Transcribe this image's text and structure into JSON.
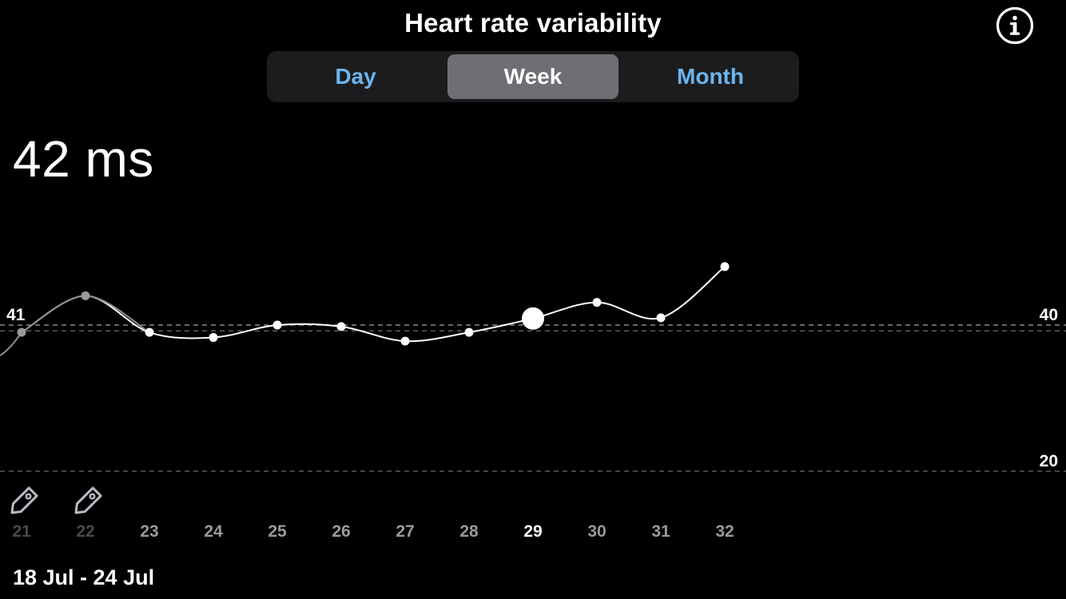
{
  "header": {
    "title": "Heart rate variability"
  },
  "segments": [
    {
      "label": "Day",
      "selected": false
    },
    {
      "label": "Week",
      "selected": true
    },
    {
      "label": "Month",
      "selected": false
    }
  ],
  "summary": {
    "value_text": "42 ms"
  },
  "date_range": "18 Jul - 24 Jul",
  "colors": {
    "background": "#000000",
    "accent": "#6cb4ef",
    "line": "#ffffff",
    "faded": "#8e8e93",
    "segment_selected": "#6e6f74"
  },
  "chart_data": {
    "type": "line",
    "x": [
      21,
      22,
      23,
      24,
      25,
      26,
      27,
      28,
      29,
      30,
      31,
      32
    ],
    "values": [
      39,
      44,
      39,
      38.3,
      40,
      39.8,
      37.8,
      39,
      40.9,
      43.1,
      41,
      48
    ],
    "selected_x": 29,
    "faded_x": [
      21,
      22
    ],
    "tagged_x": [
      21,
      22
    ],
    "left_label": "41",
    "right_ticks": [
      40,
      20
    ],
    "reference_lines": [
      40,
      39.2,
      20
    ],
    "grid": false,
    "title": "",
    "xlabel": "",
    "ylabel": ""
  }
}
